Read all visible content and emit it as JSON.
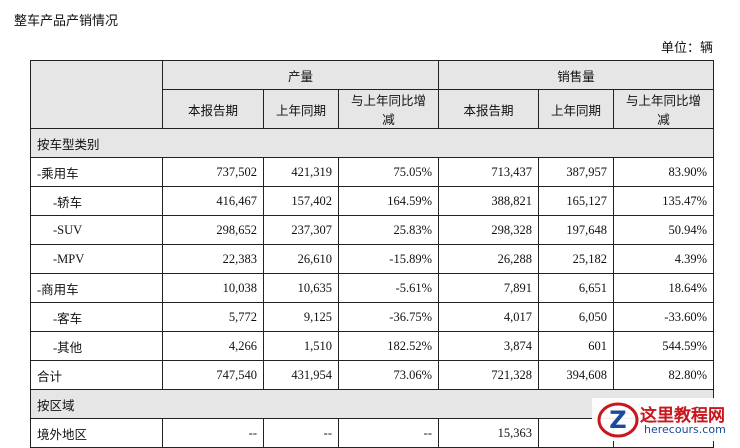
{
  "header": {
    "title": "整车产品产销情况",
    "unit": "单位：辆"
  },
  "table": {
    "groups": [
      "产量",
      "销售量"
    ],
    "columns": [
      "本报告期",
      "上年同期",
      "与上年同比增减",
      "本报告期",
      "上年同期",
      "与上年同比增减"
    ],
    "rows": [
      {
        "section": "按车型类别"
      },
      {
        "label": "-乘用车",
        "level": 0,
        "cells": [
          "737,502",
          "421,319",
          "75.05%",
          "713,437",
          "387,957",
          "83.90%"
        ]
      },
      {
        "label": "-轿车",
        "level": 1,
        "cells": [
          "416,467",
          "157,402",
          "164.59%",
          "388,821",
          "165,127",
          "135.47%"
        ]
      },
      {
        "label": "-SUV",
        "level": 1,
        "cells": [
          "298,652",
          "237,307",
          "25.83%",
          "298,328",
          "197,648",
          "50.94%"
        ]
      },
      {
        "label": "-MPV",
        "level": 1,
        "cells": [
          "22,383",
          "26,610",
          "-15.89%",
          "26,288",
          "25,182",
          "4.39%"
        ]
      },
      {
        "label": "-商用车",
        "level": 0,
        "cells": [
          "10,038",
          "10,635",
          "-5.61%",
          "7,891",
          "6,651",
          "18.64%"
        ]
      },
      {
        "label": "-客车",
        "level": 1,
        "cells": [
          "5,772",
          "9,125",
          "-36.75%",
          "4,017",
          "6,050",
          "-33.60%"
        ]
      },
      {
        "label": "-其他",
        "level": 1,
        "cells": [
          "4,266",
          "1,510",
          "182.52%",
          "3,874",
          "601",
          "544.59%"
        ]
      },
      {
        "label": "合计",
        "level": 0,
        "cells": [
          "747,540",
          "431,954",
          "73.06%",
          "721,328",
          "394,608",
          "82.80%"
        ]
      },
      {
        "section": "按区域"
      },
      {
        "label": "境外地区",
        "level": 0,
        "cells": [
          "--",
          "--",
          "--",
          "15,363",
          null,
          null
        ]
      }
    ]
  },
  "watermark": {
    "name": "这里教程网",
    "url": "herecours.com"
  }
}
